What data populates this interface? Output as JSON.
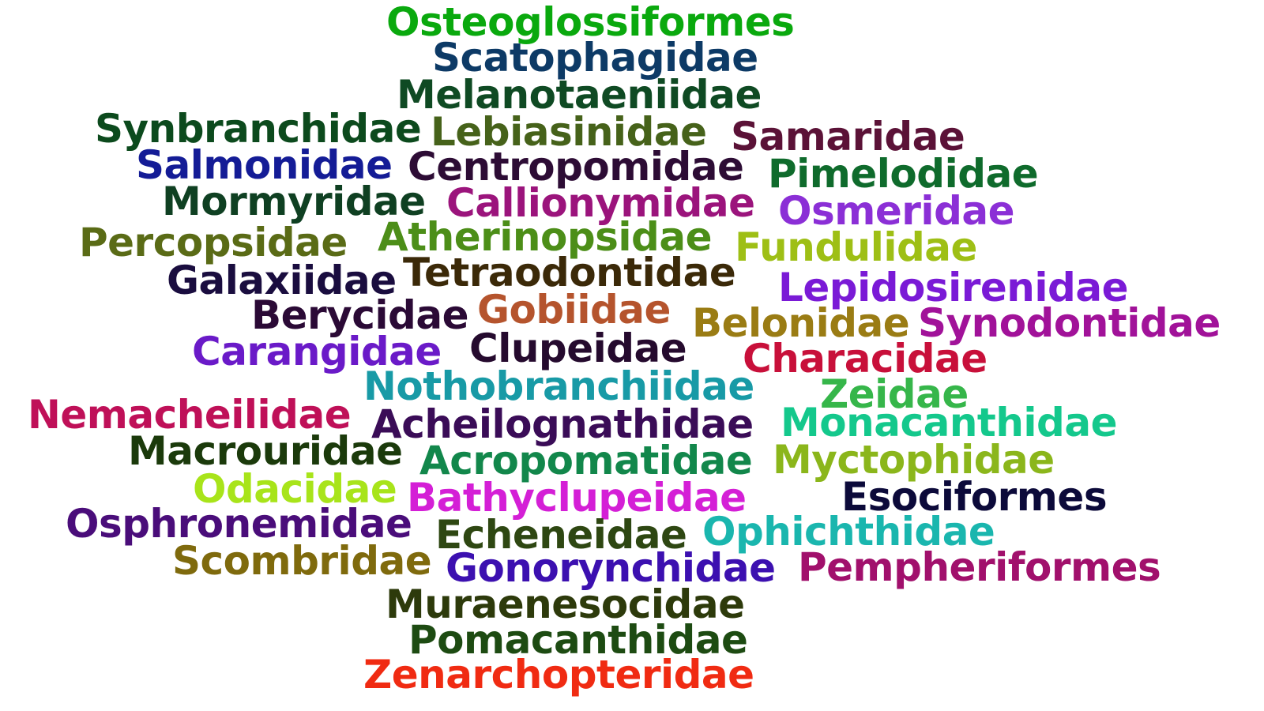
{
  "words": [
    "Osteoglossiformes",
    "Scatophagidae",
    "Melanotaeniidae",
    "Synbranchidae",
    "Lebiasinidae",
    "Samaridae",
    "Salmonidae",
    "Centropomidae",
    "Pimelodidae",
    "Mormyridae",
    "Callionymidae",
    "Osmeridae",
    "Percopsidae",
    "Atherinopsidae",
    "Fundulidae",
    "Galaxiidae",
    "Tetraodontidae",
    "Lepidosirenidae",
    "Berycidae",
    "Gobiidae",
    "Belonidae",
    "Synodontidae",
    "Carangidae",
    "Clupeidae",
    "Characidae",
    "Nothobranchiidae",
    "Zeidae",
    "Nemacheilidae",
    "Acheilognathidae",
    "Monacanthidae",
    "Macrouridae",
    "Acropomatidae",
    "Myctophidae",
    "Odacidae",
    "Bathyclupeidae",
    "Esociformes",
    "Osphronemidae",
    "Echeneidae",
    "Ophichthidae",
    "Scombridae",
    "Gonorynchidae",
    "Pempheriformes",
    "Muraenesocidae",
    "Pomacanthidae",
    "Zenarchopteridae"
  ]
}
